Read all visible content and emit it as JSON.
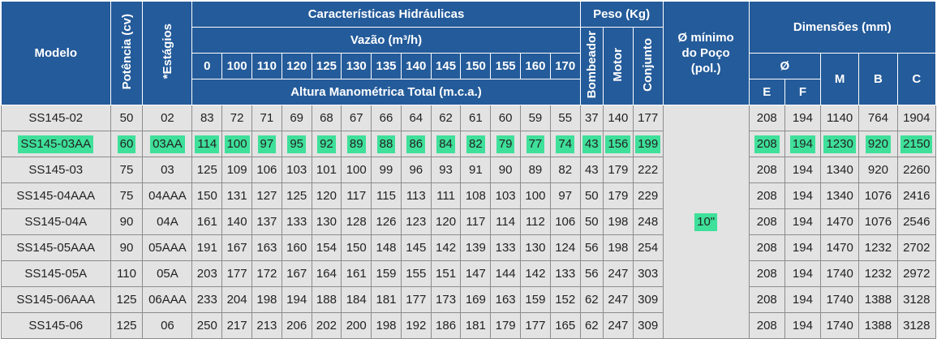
{
  "header": {
    "modelo": "Modelo",
    "potencia": "Potência (cv)",
    "estagios": "*Estágios",
    "caracteristicas": "Características Hidráulicas",
    "vazao": "Vazão (m³/h)",
    "flows": [
      "0",
      "100",
      "110",
      "120",
      "125",
      "130",
      "135",
      "140",
      "145",
      "150",
      "155",
      "160",
      "170"
    ],
    "altura": "Altura Manométrica Total (m.c.a.)",
    "peso": "Peso (Kg)",
    "bombeador": "Bombeador",
    "motor": "Motor",
    "conjunto": "Conjunto",
    "poco_line1": "Ø mínimo",
    "poco_line2": "do Poço",
    "poco_line3": "(pol.)",
    "dimensoes": "Dimensões (mm)",
    "diam": "Ø",
    "e": "E",
    "f": "F",
    "m": "M",
    "b": "B",
    "c": "C"
  },
  "well_diameter": "10\"",
  "highlight_color": "#3ee09a",
  "header_color": "#245b9a",
  "rows": [
    {
      "modelo": "SS145-02",
      "pot": "50",
      "est": "02",
      "heads": [
        "83",
        "72",
        "71",
        "69",
        "68",
        "67",
        "66",
        "64",
        "62",
        "61",
        "60",
        "59",
        "55"
      ],
      "bomb": "37",
      "motor": "140",
      "conj": "177",
      "e": "208",
      "f": "194",
      "m": "1140",
      "b": "764",
      "c": "1904",
      "highlight": false
    },
    {
      "modelo": "SS145-03AA",
      "pot": "60",
      "est": "03AA",
      "heads": [
        "114",
        "100",
        "97",
        "95",
        "92",
        "89",
        "88",
        "86",
        "84",
        "82",
        "79",
        "77",
        "74"
      ],
      "bomb": "43",
      "motor": "156",
      "conj": "199",
      "e": "208",
      "f": "194",
      "m": "1230",
      "b": "920",
      "c": "2150",
      "highlight": true
    },
    {
      "modelo": "SS145-03",
      "pot": "75",
      "est": "03",
      "heads": [
        "125",
        "109",
        "106",
        "103",
        "101",
        "100",
        "99",
        "96",
        "93",
        "91",
        "90",
        "89",
        "82"
      ],
      "bomb": "43",
      "motor": "179",
      "conj": "222",
      "e": "208",
      "f": "194",
      "m": "1340",
      "b": "920",
      "c": "2260",
      "highlight": false
    },
    {
      "modelo": "SS145-04AAA",
      "pot": "75",
      "est": "04AAA",
      "heads": [
        "150",
        "131",
        "127",
        "125",
        "120",
        "117",
        "115",
        "113",
        "111",
        "108",
        "103",
        "100",
        "97"
      ],
      "bomb": "50",
      "motor": "179",
      "conj": "229",
      "e": "208",
      "f": "194",
      "m": "1340",
      "b": "1076",
      "c": "2416",
      "highlight": false
    },
    {
      "modelo": "SS145-04A",
      "pot": "90",
      "est": "04A",
      "heads": [
        "161",
        "140",
        "137",
        "133",
        "130",
        "128",
        "126",
        "123",
        "120",
        "117",
        "114",
        "112",
        "106"
      ],
      "bomb": "50",
      "motor": "198",
      "conj": "248",
      "e": "208",
      "f": "194",
      "m": "1470",
      "b": "1076",
      "c": "2546",
      "highlight": false
    },
    {
      "modelo": "SS145-05AAA",
      "pot": "90",
      "est": "05AAA",
      "heads": [
        "191",
        "167",
        "163",
        "160",
        "154",
        "150",
        "148",
        "145",
        "142",
        "139",
        "133",
        "130",
        "124"
      ],
      "bomb": "56",
      "motor": "198",
      "conj": "254",
      "e": "208",
      "f": "194",
      "m": "1470",
      "b": "1232",
      "c": "2702",
      "highlight": false
    },
    {
      "modelo": "SS145-05A",
      "pot": "110",
      "est": "05A",
      "heads": [
        "203",
        "177",
        "172",
        "167",
        "164",
        "161",
        "159",
        "155",
        "151",
        "147",
        "144",
        "142",
        "133"
      ],
      "bomb": "56",
      "motor": "247",
      "conj": "303",
      "e": "208",
      "f": "194",
      "m": "1740",
      "b": "1232",
      "c": "2972",
      "highlight": false
    },
    {
      "modelo": "SS145-06AAA",
      "pot": "125",
      "est": "06AAA",
      "heads": [
        "233",
        "204",
        "198",
        "194",
        "188",
        "184",
        "181",
        "177",
        "173",
        "169",
        "163",
        "159",
        "152"
      ],
      "bomb": "62",
      "motor": "247",
      "conj": "309",
      "e": "208",
      "f": "194",
      "m": "1740",
      "b": "1388",
      "c": "3128",
      "highlight": false
    },
    {
      "modelo": "SS145-06",
      "pot": "125",
      "est": "06",
      "heads": [
        "250",
        "217",
        "213",
        "206",
        "202",
        "200",
        "198",
        "192",
        "186",
        "181",
        "179",
        "177",
        "165"
      ],
      "bomb": "62",
      "motor": "247",
      "conj": "309",
      "e": "208",
      "f": "194",
      "m": "1740",
      "b": "1388",
      "c": "3128",
      "highlight": false
    }
  ]
}
